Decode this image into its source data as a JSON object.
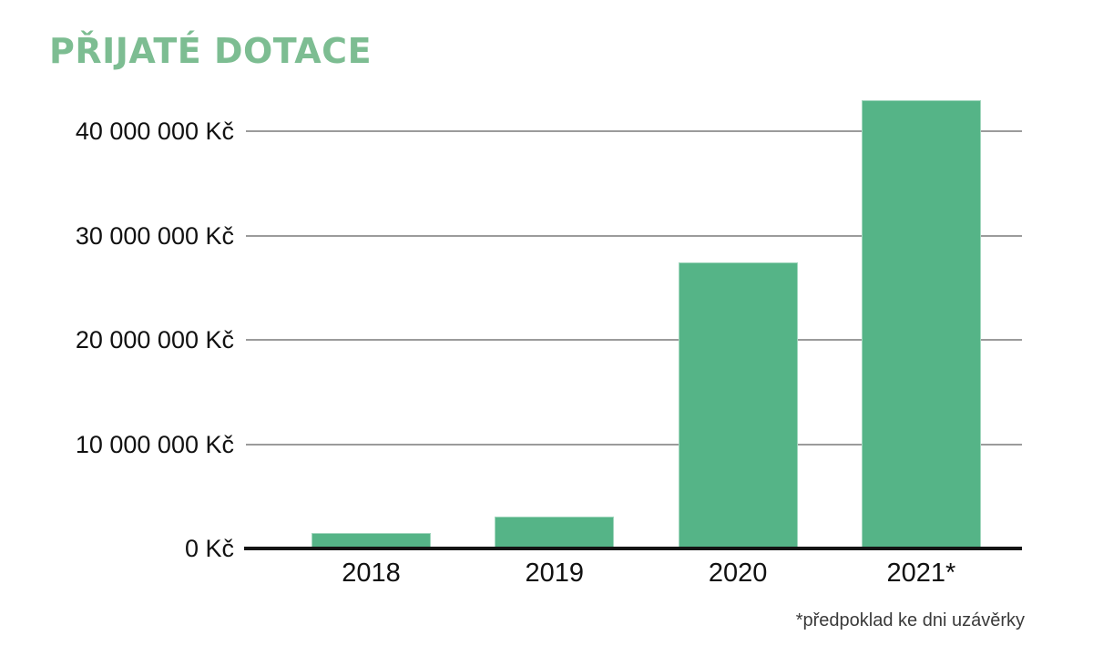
{
  "title": "PŘIJATÉ DOTACE",
  "footnote": "*předpoklad ke dni uzávěrky",
  "colors": {
    "title_green": "#7dbd92",
    "bar_green": "#55b487",
    "gridline_gray": "#9b9b9b",
    "axis_black": "#141414",
    "label_text": "#111111",
    "footnote_text": "#3a3a3a",
    "background": "#ffffff"
  },
  "chart_data": {
    "type": "bar",
    "title": "PŘIJATÉ DOTACE",
    "xlabel": "",
    "ylabel": "",
    "unit": "Kč",
    "categories": [
      "2018",
      "2019",
      "2020",
      "2021*"
    ],
    "values": [
      1500000,
      3100000,
      27400000,
      43000000
    ],
    "y_ticks": [
      {
        "value": 0,
        "label": "0 Kč"
      },
      {
        "value": 10000000,
        "label": "10 000 000 Kč"
      },
      {
        "value": 20000000,
        "label": "20 000 000 Kč"
      },
      {
        "value": 30000000,
        "label": "30 000 000 Kč"
      },
      {
        "value": 40000000,
        "label": "40 000 000 Kč"
      }
    ],
    "ylim": [
      0,
      45000000
    ],
    "grid": true,
    "legend": "none",
    "annotation": "*předpoklad ke dni uzávěrky"
  }
}
